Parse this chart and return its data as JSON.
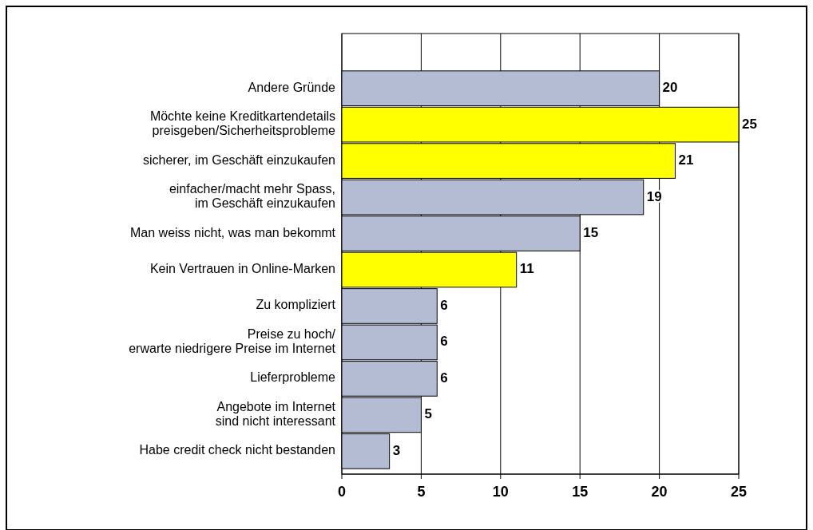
{
  "chart_data": {
    "type": "bar",
    "orientation": "horizontal",
    "categories": [
      "Andere Gründe",
      "Möchte keine Kreditkartendetails\npreisgeben/Sicherheitsprobleme",
      "sicherer, im Geschäft einzukaufen",
      "einfacher/macht mehr Spass,\nim Geschäft einzukaufen",
      "Man weiss nicht, was man bekommt",
      "Kein Vertrauen in Online-Marken",
      "Zu kompliziert",
      "Preise zu hoch/\nerwarte niedrigere Preise im Internet",
      "Lieferprobleme",
      "Angebote im Internet\nsind nicht interessant",
      "Habe credit check nicht bestanden"
    ],
    "values": [
      20,
      25,
      21,
      19,
      15,
      11,
      6,
      6,
      6,
      5,
      3
    ],
    "colors": [
      "#b4bcd4",
      "#ffff00",
      "#ffff00",
      "#b4bcd4",
      "#b4bcd4",
      "#ffff00",
      "#b4bcd4",
      "#b4bcd4",
      "#b4bcd4",
      "#b4bcd4",
      "#b4bcd4"
    ],
    "xlim": [
      0,
      25
    ],
    "xticks": [
      0,
      5,
      10,
      15,
      20,
      25
    ],
    "grid": "x",
    "data_labels": true
  }
}
